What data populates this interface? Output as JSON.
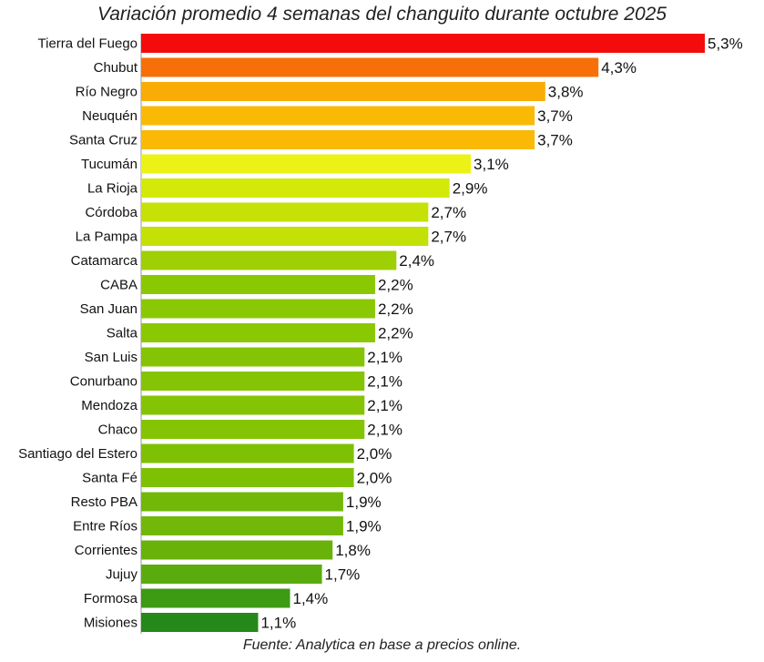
{
  "chart_data": {
    "type": "bar",
    "orientation": "horizontal",
    "title": "Variación promedio 4 semanas del changuito durante octubre 2025",
    "source_prefix": "Fuente",
    "source_text": ": Analytica en base a precios online.",
    "value_suffix": "%",
    "decimal_separator": ",",
    "xlim": [
      0,
      5.5
    ],
    "grid": false,
    "categories": [
      "Tierra del Fuego",
      "Chubut",
      "Río Negro",
      "Neuquén",
      "Santa Cruz",
      "Tucumán",
      "La Rioja",
      "Córdoba",
      "La Pampa",
      "Catamarca",
      "CABA",
      "San Juan",
      "Salta",
      "San Luis",
      "Conurbano",
      "Mendoza",
      "Chaco",
      "Santiago del Estero",
      "Santa Fé",
      "Resto PBA",
      "Entre Ríos",
      "Corrientes",
      "Jujuy",
      "Formosa",
      "Misiones"
    ],
    "values": [
      5.3,
      4.3,
      3.8,
      3.7,
      3.7,
      3.1,
      2.9,
      2.7,
      2.7,
      2.4,
      2.2,
      2.2,
      2.2,
      2.1,
      2.1,
      2.1,
      2.1,
      2.0,
      2.0,
      1.9,
      1.9,
      1.8,
      1.7,
      1.4,
      1.1
    ],
    "value_labels": [
      "5,3%",
      "4,3%",
      "3,8%",
      "3,7%",
      "3,7%",
      "3,1%",
      "2,9%",
      "2,7%",
      "2,7%",
      "2,4%",
      "2,2%",
      "2,2%",
      "2,2%",
      "2,1%",
      "2,1%",
      "2,1%",
      "2,1%",
      "2,0%",
      "2,0%",
      "1,9%",
      "1,9%",
      "1,8%",
      "1,7%",
      "1,4%",
      "1,1%"
    ],
    "colors": [
      "#f40c0c",
      "#f76f08",
      "#f9ac05",
      "#f9b905",
      "#f9b905",
      "#ecf215",
      "#d2e90a",
      "#c6e106",
      "#c3e007",
      "#9fd005",
      "#8bc804",
      "#8bc804",
      "#8bc804",
      "#84c405",
      "#84c405",
      "#84c405",
      "#84c405",
      "#7ec004",
      "#7ec004",
      "#72b808",
      "#72b808",
      "#68b20a",
      "#5aab0d",
      "#3c9a14",
      "#25881a"
    ]
  }
}
